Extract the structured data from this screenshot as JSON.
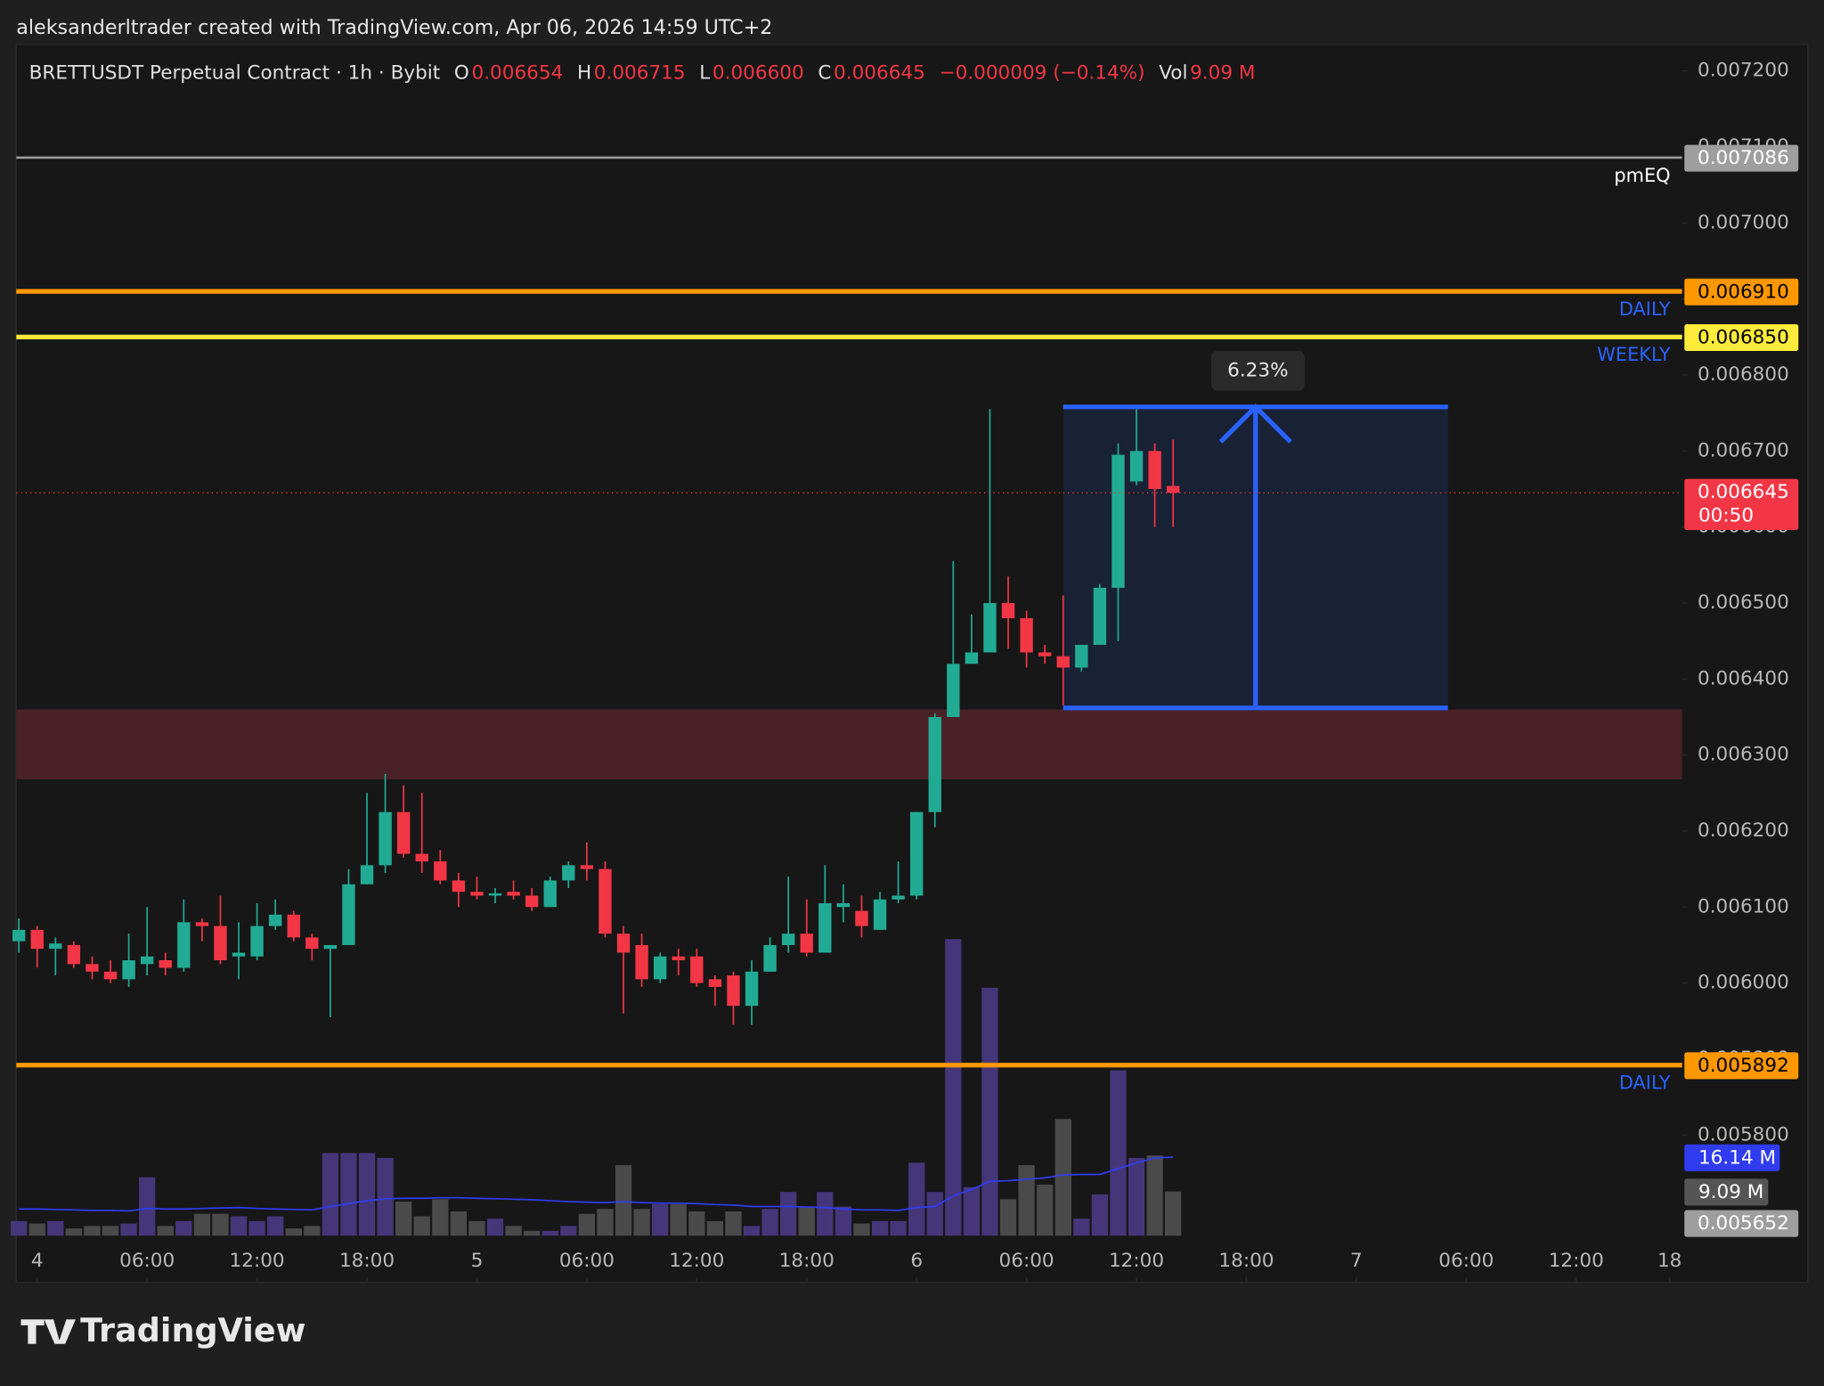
{
  "header": {
    "credit": "aleksanderltrader created with TradingView.com, Apr 06, 2026 14:59 UTC+2",
    "symbol": "BRETTUSDT Perpetual Contract · 1h · Bybit",
    "ohlc": [
      {
        "key": "O",
        "value": "0.006654"
      },
      {
        "key": "H",
        "value": "0.006715"
      },
      {
        "key": "L",
        "value": "0.006600"
      },
      {
        "key": "C",
        "value": "0.006645"
      }
    ],
    "change": "−0.000009 (−0.14%)",
    "vol_key": "Vol",
    "vol_value": "9.09 M"
  },
  "brand": "TradingView",
  "chart_data": {
    "type": "candlestick",
    "up_color": "#22ab94",
    "down_color": "#f23645",
    "volume_up_color": "#45367a",
    "volume_down_color": "#4a4a4a",
    "volume_ma_color": "#2f3cf0",
    "x": [
      -1,
      0,
      1,
      2,
      3,
      4,
      5,
      6,
      7,
      8,
      9,
      10,
      11,
      12,
      13,
      14,
      15,
      16,
      17,
      18,
      19,
      20,
      21,
      22,
      23,
      24,
      25,
      26,
      27,
      28,
      29,
      30,
      31,
      32,
      33,
      34,
      35,
      36,
      37,
      38,
      39,
      40,
      41,
      42,
      43,
      44,
      45,
      46,
      47,
      48,
      49,
      50,
      51,
      52,
      53,
      54,
      55,
      56,
      57,
      58,
      59,
      60,
      61,
      62
    ],
    "open": [
      0.006055,
      0.00607,
      0.006045,
      0.00605,
      0.006025,
      0.006015,
      0.006005,
      0.006025,
      0.00603,
      0.00602,
      0.00608,
      0.006075,
      0.006035,
      0.006035,
      0.006075,
      0.00609,
      0.00606,
      0.006045,
      0.00605,
      0.00613,
      0.006155,
      0.006225,
      0.00617,
      0.00616,
      0.006135,
      0.00612,
      0.006115,
      0.00612,
      0.006115,
      0.0061,
      0.006135,
      0.006155,
      0.00615,
      0.006065,
      0.00605,
      0.006005,
      0.006035,
      0.006035,
      0.006005,
      0.00601,
      0.00597,
      0.006015,
      0.00605,
      0.006065,
      0.00604,
      0.0061,
      0.006095,
      0.00607,
      0.00611,
      0.006115,
      0.006225,
      0.00635,
      0.00642,
      0.006435,
      0.0065,
      0.00648,
      0.006435,
      0.00643,
      0.006415,
      0.006445,
      0.00652,
      0.00666,
      0.0067,
      0.006654
    ],
    "high": [
      0.006085,
      0.006075,
      0.00606,
      0.006055,
      0.006035,
      0.00603,
      0.006065,
      0.0061,
      0.00604,
      0.00611,
      0.006085,
      0.006115,
      0.00608,
      0.006105,
      0.00611,
      0.006095,
      0.006065,
      0.00605,
      0.00615,
      0.00625,
      0.006275,
      0.00626,
      0.00625,
      0.006175,
      0.006145,
      0.00614,
      0.006125,
      0.006135,
      0.006125,
      0.00614,
      0.00616,
      0.006185,
      0.00616,
      0.006075,
      0.006065,
      0.00604,
      0.006045,
      0.006045,
      0.00601,
      0.006015,
      0.00603,
      0.00606,
      0.00614,
      0.00611,
      0.006155,
      0.00613,
      0.006115,
      0.00612,
      0.00616,
      0.006225,
      0.006355,
      0.006555,
      0.006485,
      0.006755,
      0.006535,
      0.00649,
      0.006445,
      0.00651,
      0.006445,
      0.006525,
      0.00671,
      0.006755,
      0.00671,
      0.006715
    ],
    "low": [
      0.00604,
      0.00602,
      0.00601,
      0.00602,
      0.006005,
      0.006,
      0.005995,
      0.00601,
      0.00601,
      0.006015,
      0.006055,
      0.006025,
      0.006005,
      0.00603,
      0.00607,
      0.006055,
      0.00603,
      0.005955,
      0.00605,
      0.00613,
      0.006145,
      0.006165,
      0.006145,
      0.00613,
      0.0061,
      0.00611,
      0.006105,
      0.00611,
      0.006095,
      0.0061,
      0.006125,
      0.006135,
      0.00606,
      0.00596,
      0.005995,
      0.006,
      0.00601,
      0.005995,
      0.00597,
      0.005945,
      0.005945,
      0.006015,
      0.00604,
      0.006035,
      0.00604,
      0.00608,
      0.00606,
      0.00607,
      0.006105,
      0.00611,
      0.006205,
      0.00635,
      0.00642,
      0.006435,
      0.00644,
      0.006415,
      0.00642,
      0.006365,
      0.00641,
      0.006445,
      0.00645,
      0.006655,
      0.0066,
      0.0066
    ],
    "close": [
      0.00607,
      0.006045,
      0.006052,
      0.006025,
      0.006015,
      0.006005,
      0.00603,
      0.006035,
      0.00602,
      0.00608,
      0.006075,
      0.00603,
      0.00604,
      0.006075,
      0.00609,
      0.00606,
      0.006045,
      0.00605,
      0.00613,
      0.006155,
      0.006225,
      0.00617,
      0.00616,
      0.006135,
      0.00612,
      0.006115,
      0.006118,
      0.006115,
      0.0061,
      0.006135,
      0.006155,
      0.00615,
      0.006065,
      0.00604,
      0.006005,
      0.006035,
      0.00603,
      0.006,
      0.005995,
      0.00597,
      0.006015,
      0.00605,
      0.006065,
      0.00604,
      0.006105,
      0.006105,
      0.006075,
      0.00611,
      0.006115,
      0.006225,
      0.00635,
      0.00642,
      0.006435,
      0.0065,
      0.00648,
      0.006435,
      0.00643,
      0.006415,
      0.006445,
      0.00652,
      0.006695,
      0.0067,
      0.00665,
      0.006645
    ],
    "volume": [
      3,
      2.5,
      3,
      1.5,
      2,
      2,
      2.5,
      12,
      2,
      3,
      4.5,
      4.5,
      4,
      3,
      4,
      1.5,
      2,
      17,
      17,
      17,
      16,
      7,
      4,
      7.5,
      5,
      3,
      3.5,
      2,
      1,
      1,
      2,
      4.5,
      5.5,
      14.5,
      5.5,
      6.5,
      6.5,
      5,
      3,
      5,
      2,
      5.5,
      9,
      6,
      9,
      6,
      2.5,
      3,
      3,
      15,
      9,
      61,
      10,
      51,
      7.5,
      14.5,
      10.5,
      24,
      3.5,
      8.5,
      34,
      16,
      16.5,
      9.09
    ],
    "volume_ma": [
      5.5,
      5.5,
      5.4,
      5.3,
      5.2,
      5.2,
      5.1,
      5.6,
      5.5,
      5.5,
      5.6,
      5.7,
      5.8,
      5.6,
      5.5,
      5.4,
      5.3,
      6.0,
      6.6,
      7.2,
      7.6,
      7.7,
      7.7,
      7.8,
      7.8,
      7.7,
      7.6,
      7.5,
      7.4,
      7.2,
      7.0,
      6.9,
      6.8,
      7.0,
      6.8,
      6.7,
      6.7,
      6.6,
      6.4,
      6.3,
      6.0,
      6.0,
      6.0,
      5.9,
      5.8,
      5.5,
      5.3,
      5.3,
      5.2,
      5.8,
      6.0,
      8.2,
      9.5,
      11.2,
      11.3,
      11.6,
      11.9,
      12.5,
      12.6,
      12.6,
      13.8,
      15.0,
      16.0,
      16.14
    ],
    "xlim": [
      -1.14,
      89.78
    ],
    "xticks": [
      {
        "value": 0,
        "label": "4"
      },
      {
        "value": 6,
        "label": "06:00"
      },
      {
        "value": 12,
        "label": "12:00"
      },
      {
        "value": 18,
        "label": "18:00"
      },
      {
        "value": 24,
        "label": "5"
      },
      {
        "value": 30,
        "label": "06:00"
      },
      {
        "value": 36,
        "label": "12:00"
      },
      {
        "value": 42,
        "label": "18:00"
      },
      {
        "value": 48,
        "label": "6"
      },
      {
        "value": 54,
        "label": "06:00"
      },
      {
        "value": 60,
        "label": "12:00"
      },
      {
        "value": 66,
        "label": "18:00"
      },
      {
        "value": 72,
        "label": "7"
      },
      {
        "value": 78,
        "label": "06:00"
      },
      {
        "value": 84,
        "label": "12:00"
      },
      {
        "value": 89.1,
        "label": "18"
      }
    ],
    "ylim": [
      0.005663,
      0.007235
    ],
    "yticks": [
      {
        "value": 0.0058,
        "label": "0.005800"
      },
      {
        "value": 0.0059,
        "label": "0.005900"
      },
      {
        "value": 0.006,
        "label": "0.006000"
      },
      {
        "value": 0.0061,
        "label": "0.006100"
      },
      {
        "value": 0.0062,
        "label": "0.006200"
      },
      {
        "value": 0.0063,
        "label": "0.006300"
      },
      {
        "value": 0.0064,
        "label": "0.006400"
      },
      {
        "value": 0.0065,
        "label": "0.006500"
      },
      {
        "value": 0.0066,
        "label": "0.006600"
      },
      {
        "value": 0.0067,
        "label": "0.006700"
      },
      {
        "value": 0.0068,
        "label": "0.006800"
      },
      {
        "value": 0.0069,
        "label": "0.006900"
      },
      {
        "value": 0.007,
        "label": "0.007000"
      },
      {
        "value": 0.0071,
        "label": "0.007100"
      },
      {
        "value": 0.0072,
        "label": "0.007200"
      }
    ],
    "volume_ylim": [
      0,
      245
    ],
    "levels": [
      {
        "name": "pmEQ",
        "value": 0.007086,
        "label": "0.007086",
        "color": "#9e9e9e",
        "text_color": "#ffffff",
        "tag_color": "#ffffff"
      },
      {
        "name": "DAILY",
        "value": 0.00691,
        "label": "0.006910",
        "color": "#ff9800",
        "text_color": "#000000",
        "tag_color": "#2962ff"
      },
      {
        "name": "WEEKLY",
        "value": 0.00685,
        "label": "0.006850",
        "color": "#ffeb3b",
        "text_color": "#000000",
        "tag_color": "#2962ff"
      },
      {
        "name": "DAILY",
        "value": 0.005892,
        "label": "0.005892",
        "color": "#ff9800",
        "text_color": "#000000",
        "tag_color": "#2962ff"
      }
    ],
    "last_price": {
      "value": 0.006645,
      "label": "0.006645",
      "countdown": "00:50",
      "color": "#f23645"
    },
    "volume_ma_badge": {
      "value": 16.14,
      "label": "16.14 M"
    },
    "volume_badge": {
      "value": 9.09,
      "label": "9.09 M"
    },
    "extra_label": "0.005652",
    "zone": {
      "low": 0.006268,
      "high": 0.00636,
      "color": "#4a2126"
    },
    "measure": {
      "low": 0.006362,
      "high": 0.006758,
      "x_start": 56,
      "x_end": 77,
      "label": "6.23%",
      "color": "#2962ff"
    }
  }
}
